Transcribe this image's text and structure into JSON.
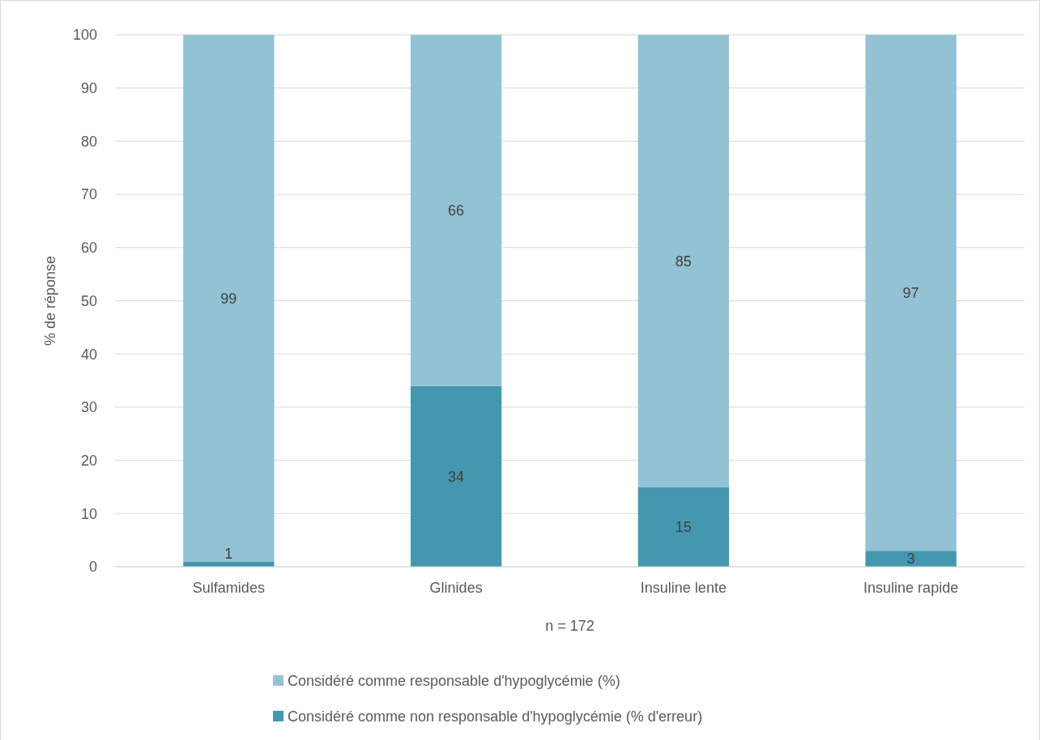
{
  "chart_data": {
    "type": "bar",
    "stacked": true,
    "xlabel": "n = 172",
    "ylabel": "% de réponse",
    "categories": [
      "Sulfamides",
      "Glinides",
      "Insuline lente",
      "Insuline rapide"
    ],
    "series": [
      {
        "name": "Considéré comme non responsable d'hypoglycémie (% d'erreur)",
        "color": "#4397ae",
        "values": [
          1,
          34,
          15,
          3
        ]
      },
      {
        "name": "Considéré comme responsable d'hypoglycémie (%)",
        "color": "#92c2d4",
        "values": [
          99,
          66,
          85,
          97
        ]
      }
    ],
    "ylim": [
      0,
      100
    ],
    "yticks": [
      0,
      10,
      20,
      30,
      40,
      50,
      60,
      70,
      80,
      90,
      100
    ],
    "grid": "y",
    "legend": "bottom",
    "data_labels": true
  }
}
